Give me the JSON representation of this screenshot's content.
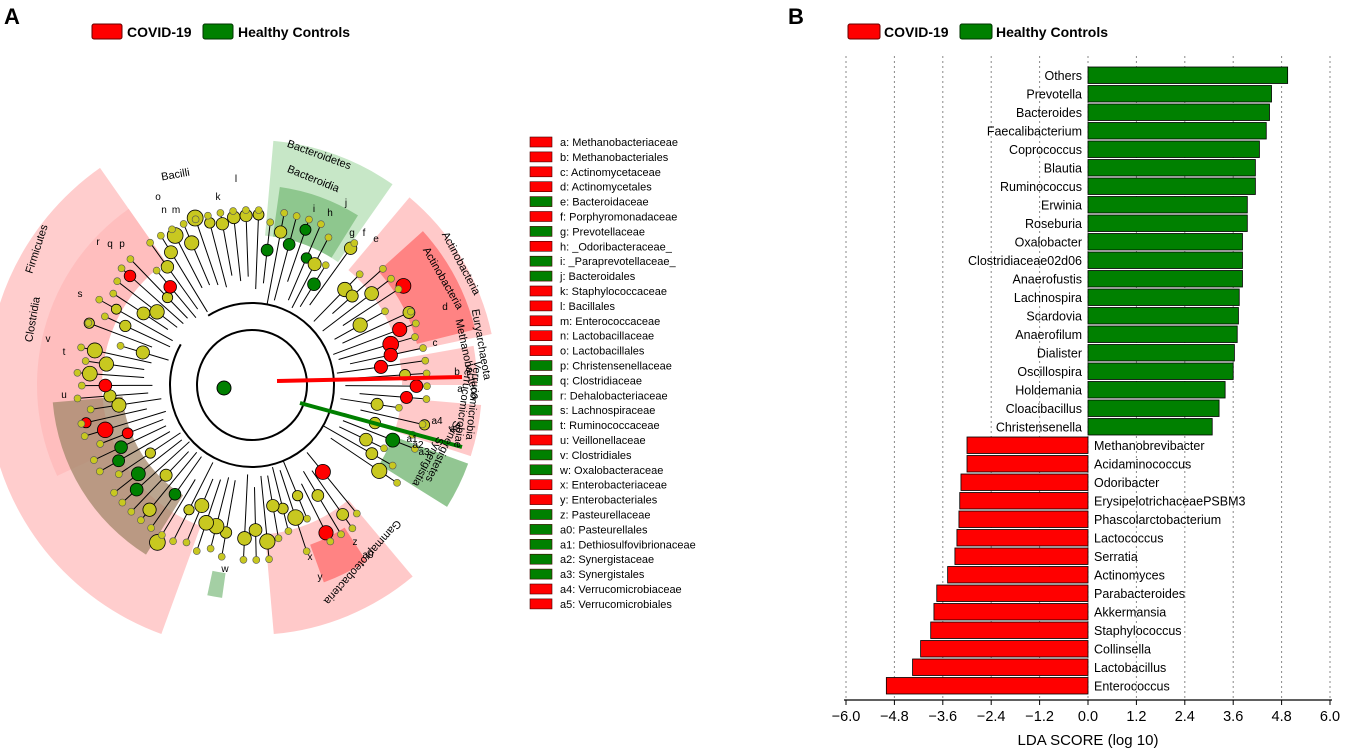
{
  "colors": {
    "covid": "#ff0000",
    "healthy": "#008000",
    "covid_shade": "#ffbcbc",
    "healthy_shade": "#b4dfb4",
    "covid_dark": "#e02020",
    "healthy_dark": "#4aa04a",
    "node_neutral": "#c8c820",
    "brown_shade": "#a3876a"
  },
  "panel_a": {
    "letter": "A",
    "legend": {
      "covid": "COVID-19",
      "healthy": "Healthy Controls"
    },
    "clade_labels": [
      {
        "text": "Bacilli",
        "group": "covid"
      },
      {
        "text": "Firmicutes",
        "group": "covid"
      },
      {
        "text": "Clostridia",
        "group": "healthy"
      },
      {
        "text": "Bacteroidetes",
        "group": "healthy"
      },
      {
        "text": "Bacteroidia",
        "group": "healthy"
      },
      {
        "text": "Actinobacteria",
        "group": "covid"
      },
      {
        "text": "Actinobacteria",
        "group": "covid"
      },
      {
        "text": "Euryarchaeota",
        "group": "covid"
      },
      {
        "text": "Methanobacteria",
        "group": "covid"
      },
      {
        "text": "Verrucomicrobia",
        "group": "covid"
      },
      {
        "text": "Verrucomicrobiae",
        "group": "covid"
      },
      {
        "text": "Synergistetes",
        "group": "healthy"
      },
      {
        "text": "Synergistia",
        "group": "healthy"
      },
      {
        "text": "Gammaproteobacteria",
        "group": "covid"
      }
    ],
    "sector_letters": [
      "l",
      "k",
      "o",
      "n",
      "m",
      "r",
      "q",
      "p",
      "s",
      "v",
      "t",
      "u",
      "i",
      "h",
      "j",
      "g",
      "f",
      "e",
      "d",
      "c",
      "b",
      "a",
      "a5",
      "a4",
      "a3",
      "a2",
      "a1",
      "a0",
      "z",
      "y",
      "x",
      "w"
    ],
    "taxa_legend": [
      {
        "key": "a",
        "name": "Methanobacteriaceae",
        "group": "covid"
      },
      {
        "key": "b",
        "name": "Methanobacteriales",
        "group": "covid"
      },
      {
        "key": "c",
        "name": "Actinomycetaceae",
        "group": "covid"
      },
      {
        "key": "d",
        "name": "Actinomycetales",
        "group": "covid"
      },
      {
        "key": "e",
        "name": "Bacteroidaceae",
        "group": "healthy"
      },
      {
        "key": "f",
        "name": "Porphyromonadaceae",
        "group": "covid"
      },
      {
        "key": "g",
        "name": "Prevotellaceae",
        "group": "healthy"
      },
      {
        "key": "h",
        "name": "_Odoribacteraceae_",
        "group": "covid"
      },
      {
        "key": "i",
        "name": "_Paraprevotellaceae_",
        "group": "healthy"
      },
      {
        "key": "j",
        "name": "Bacteroidales",
        "group": "healthy"
      },
      {
        "key": "k",
        "name": "Staphylococcaceae",
        "group": "covid"
      },
      {
        "key": "l",
        "name": "Bacillales",
        "group": "covid"
      },
      {
        "key": "m",
        "name": "Enterococcaceae",
        "group": "covid"
      },
      {
        "key": "n",
        "name": "Lactobacillaceae",
        "group": "covid"
      },
      {
        "key": "o",
        "name": "Lactobacillales",
        "group": "covid"
      },
      {
        "key": "p",
        "name": "Christensenellaceae",
        "group": "healthy"
      },
      {
        "key": "q",
        "name": "Clostridiaceae",
        "group": "healthy"
      },
      {
        "key": "r",
        "name": "Dehalobacteriaceae",
        "group": "healthy"
      },
      {
        "key": "s",
        "name": "Lachnospiraceae",
        "group": "healthy"
      },
      {
        "key": "t",
        "name": "Ruminococcaceae",
        "group": "healthy"
      },
      {
        "key": "u",
        "name": "Veillonellaceae",
        "group": "covid"
      },
      {
        "key": "v",
        "name": "Clostridiales",
        "group": "healthy"
      },
      {
        "key": "w",
        "name": "Oxalobacteraceae",
        "group": "healthy"
      },
      {
        "key": "x",
        "name": "Enterobacteriaceae",
        "group": "covid"
      },
      {
        "key": "y",
        "name": "Enterobacteriales",
        "group": "covid"
      },
      {
        "key": "z",
        "name": "Pasteurellaceae",
        "group": "healthy"
      },
      {
        "key": "a0",
        "name": "Pasteurellales",
        "group": "healthy"
      },
      {
        "key": "a1",
        "name": "Dethiosulfovibrionaceae",
        "group": "healthy"
      },
      {
        "key": "a2",
        "name": "Synergistaceae",
        "group": "healthy"
      },
      {
        "key": "a3",
        "name": "Synergistales",
        "group": "healthy"
      },
      {
        "key": "a4",
        "name": "Verrucomicrobiaceae",
        "group": "covid"
      },
      {
        "key": "a5",
        "name": "Verrucomicrobiales",
        "group": "covid"
      }
    ]
  },
  "chart_data": {
    "type": "bar",
    "orientation": "horizontal",
    "title": "",
    "panel_letter": "B",
    "legend": {
      "covid": "COVID-19",
      "healthy": "Healthy Controls"
    },
    "xlabel": "LDA SCORE (log 10)",
    "ylabel": "",
    "xlim": [
      -6.0,
      6.0
    ],
    "xticks": [
      -6.0,
      -4.8,
      -3.6,
      -2.4,
      -1.2,
      0.0,
      1.2,
      2.4,
      3.6,
      4.8,
      6.0
    ],
    "xtick_labels": [
      "−6.0",
      "−4.8",
      "−3.6",
      "−2.4",
      "−1.2",
      "0.0",
      "1.2",
      "2.4",
      "3.6",
      "4.8",
      "6.0"
    ],
    "grid": "vertical dotted",
    "bars": [
      {
        "label": "Others",
        "value": 4.95,
        "group": "healthy"
      },
      {
        "label": "Prevotella",
        "value": 4.55,
        "group": "healthy"
      },
      {
        "label": "Bacteroides",
        "value": 4.5,
        "group": "healthy"
      },
      {
        "label": "Faecalibacterium",
        "value": 4.42,
        "group": "healthy"
      },
      {
        "label": "Coprococcus",
        "value": 4.25,
        "group": "healthy"
      },
      {
        "label": "Blautia",
        "value": 4.15,
        "group": "healthy"
      },
      {
        "label": "Ruminococcus",
        "value": 4.15,
        "group": "healthy"
      },
      {
        "label": "Erwinia",
        "value": 3.95,
        "group": "healthy"
      },
      {
        "label": "Roseburia",
        "value": 3.95,
        "group": "healthy"
      },
      {
        "label": "Oxalobacter",
        "value": 3.83,
        "group": "healthy"
      },
      {
        "label": "Clostridiaceae02d06",
        "value": 3.83,
        "group": "healthy"
      },
      {
        "label": "Anaerofustis",
        "value": 3.83,
        "group": "healthy"
      },
      {
        "label": "Lachnospira",
        "value": 3.75,
        "group": "healthy"
      },
      {
        "label": "Scardovia",
        "value": 3.73,
        "group": "healthy"
      },
      {
        "label": "Anaerofilum",
        "value": 3.7,
        "group": "healthy"
      },
      {
        "label": "Dialister",
        "value": 3.63,
        "group": "healthy"
      },
      {
        "label": "Oscillospira",
        "value": 3.6,
        "group": "healthy"
      },
      {
        "label": "Holdemania",
        "value": 3.4,
        "group": "healthy"
      },
      {
        "label": "Cloacibacillus",
        "value": 3.25,
        "group": "healthy"
      },
      {
        "label": "Christensenella",
        "value": 3.08,
        "group": "healthy"
      },
      {
        "label": "Methanobrevibacter",
        "value": -3.0,
        "group": "covid"
      },
      {
        "label": "Acidaminococcus",
        "value": -3.0,
        "group": "covid"
      },
      {
        "label": "Odoribacter",
        "value": -3.15,
        "group": "covid"
      },
      {
        "label": "ErysipelotrichaceaePSBM3",
        "value": -3.18,
        "group": "covid"
      },
      {
        "label": "Phascolarctobacterium",
        "value": -3.2,
        "group": "covid"
      },
      {
        "label": "Lactococcus",
        "value": -3.25,
        "group": "covid"
      },
      {
        "label": "Serratia",
        "value": -3.3,
        "group": "covid"
      },
      {
        "label": "Actinomyces",
        "value": -3.48,
        "group": "covid"
      },
      {
        "label": "Parabacteroides",
        "value": -3.75,
        "group": "covid"
      },
      {
        "label": "Akkermansia",
        "value": -3.82,
        "group": "covid"
      },
      {
        "label": "Staphylococcus",
        "value": -3.9,
        "group": "covid"
      },
      {
        "label": "Collinsella",
        "value": -4.15,
        "group": "covid"
      },
      {
        "label": "Lactobacillus",
        "value": -4.35,
        "group": "covid"
      },
      {
        "label": "Enterococcus",
        "value": -5.0,
        "group": "covid"
      }
    ]
  }
}
